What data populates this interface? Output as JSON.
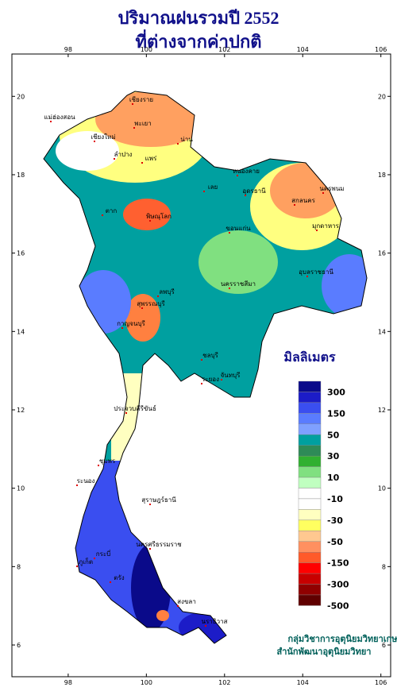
{
  "title": "ปริมาณฝนรวมปี 2552",
  "subtitle": "ที่ต่างจากค่าปกติ",
  "map": {
    "lon_ticks": [
      98,
      100,
      102,
      104,
      106
    ],
    "lat_ticks": [
      6,
      8,
      10,
      12,
      14,
      16,
      18,
      20
    ],
    "lon_range": [
      96.56,
      106.25
    ],
    "lat_range": [
      5.19,
      21.08
    ],
    "places": [
      "เชียงราย",
      "พะเยา",
      "น่าน",
      "แพร่",
      "ลำปาง",
      "เชียงใหม่",
      "แม่ฮ่องสอน",
      "ตาก",
      "พิษณุโลก",
      "เลย",
      "หนองคาย",
      "อุดรธานี",
      "นครพนม",
      "สกลนคร",
      "มุกดาหาร",
      "ขอนแก่น",
      "อุบลราชธานี",
      "นครราชสีมา",
      "ลพบุรี",
      "สุพรรณบุรี",
      "กาญจนบุรี",
      "ชลบุรี",
      "ระยอง",
      "จันทบุรี",
      "ประจวบคีรีขันธ์",
      "ชุมพร",
      "ระนอง",
      "สุราษฎร์ธานี",
      "ภูเก็ต",
      "กระบี่",
      "ตรัง",
      "สงขลา",
      "นราธิวาส",
      "นครศรีธรรมราช"
    ]
  },
  "legend": {
    "title": "มิลลิเมตร",
    "ticks": [
      300,
      150,
      50,
      30,
      10,
      -10,
      -30,
      -50,
      -150,
      -300,
      -500
    ],
    "colors": [
      "#0a0a8a",
      "#1c1cc8",
      "#3a4ef0",
      "#5a7cff",
      "#7fa0ff",
      "#00a0a0",
      "#2e8b57",
      "#30b030",
      "#80e080",
      "#c0ffc0",
      "#ffffff",
      "#ffffff",
      "#ffffc0",
      "#ffff60",
      "#ffc890",
      "#ff9060",
      "#ff5a2a",
      "#ff0000",
      "#c80000",
      "#900000",
      "#600000"
    ]
  },
  "credits": [
    "กลุ่มวิชาการอุตุนิยมวิทยาเกษตร",
    "สำนักพัฒนาอุตุนิยมวิทยา"
  ]
}
